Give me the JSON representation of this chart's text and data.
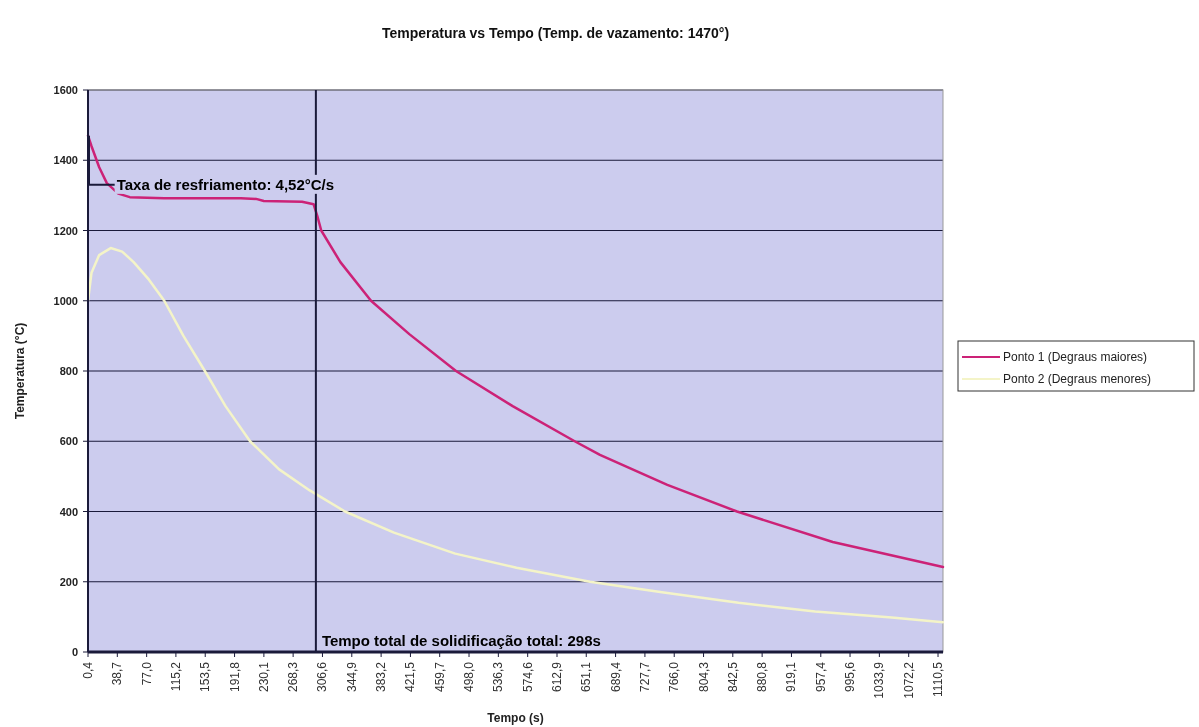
{
  "chart_data": {
    "type": "line",
    "title": "Temperatura vs Tempo (Temp. de vazamento: 1470°)",
    "xlabel": "Tempo (s)",
    "ylabel": "Temperatura (°C)",
    "xlim": [
      0.4,
      1117
    ],
    "ylim": [
      0,
      1600
    ],
    "yticks": [
      0,
      200,
      400,
      600,
      800,
      1000,
      1200,
      1400,
      1600
    ],
    "xticks": [
      {
        "value": 0.4,
        "label": "0,4"
      },
      {
        "value": 38.7,
        "label": "38,7"
      },
      {
        "value": 77.0,
        "label": "77,0"
      },
      {
        "value": 115.2,
        "label": "115,2"
      },
      {
        "value": 153.5,
        "label": "153,5"
      },
      {
        "value": 191.8,
        "label": "191,8"
      },
      {
        "value": 230.1,
        "label": "230,1"
      },
      {
        "value": 268.3,
        "label": "268,3"
      },
      {
        "value": 306.6,
        "label": "306,6"
      },
      {
        "value": 344.9,
        "label": "344,9"
      },
      {
        "value": 383.2,
        "label": "383,2"
      },
      {
        "value": 421.5,
        "label": "421,5"
      },
      {
        "value": 459.7,
        "label": "459,7"
      },
      {
        "value": 498.0,
        "label": "498,0"
      },
      {
        "value": 536.3,
        "label": "536,3"
      },
      {
        "value": 574.6,
        "label": "574,6"
      },
      {
        "value": 612.9,
        "label": "612,9"
      },
      {
        "value": 651.1,
        "label": "651,1"
      },
      {
        "value": 689.4,
        "label": "689,4"
      },
      {
        "value": 727.7,
        "label": "727,7"
      },
      {
        "value": 766.0,
        "label": "766,0"
      },
      {
        "value": 804.3,
        "label": "804,3"
      },
      {
        "value": 842.5,
        "label": "842,5"
      },
      {
        "value": 880.8,
        "label": "880,8"
      },
      {
        "value": 919.1,
        "label": "919,1"
      },
      {
        "value": 957.4,
        "label": "957,4"
      },
      {
        "value": 995.6,
        "label": "995,6"
      },
      {
        "value": 1033.9,
        "label": "1033,9"
      },
      {
        "value": 1072.2,
        "label": "1072,2"
      },
      {
        "value": 1110.5,
        "label": "1110,5"
      }
    ],
    "grid": "y",
    "legend": "right",
    "marker": "none",
    "line_style": "solid",
    "series": [
      {
        "name": "Ponto 1 (Degraus maiores)",
        "color": "#cc2277",
        "x": [
          0.4,
          5,
          15,
          25,
          40,
          55,
          100,
          200,
          220,
          230,
          280,
          295,
          300,
          305,
          330,
          370,
          420,
          481,
          555,
          636,
          669,
          757,
          848,
          973,
          1117
        ],
        "values": [
          1470,
          1440,
          1380,
          1335,
          1305,
          1295,
          1292,
          1292,
          1290,
          1284,
          1282,
          1275,
          1240,
          1200,
          1110,
          1000,
          905,
          800,
          700,
          600,
          561,
          476,
          400,
          313,
          242
        ]
      },
      {
        "name": "Ponto 2 (Degraus menores)",
        "color": "#f4f4c8",
        "x": [
          0.4,
          5,
          15,
          30,
          45,
          60,
          80,
          100,
          125,
          153,
          180,
          212,
          250,
          290,
          336,
          400,
          480,
          560,
          656,
          750,
          850,
          950,
          1050,
          1117
        ],
        "values": [
          1000,
          1080,
          1130,
          1150,
          1140,
          1110,
          1060,
          1000,
          900,
          800,
          700,
          600,
          520,
          460,
          400,
          340,
          280,
          240,
          200,
          170,
          140,
          115,
          98,
          85
        ]
      }
    ],
    "ref_lines": [
      {
        "axis": "x",
        "value": 298,
        "color": "#1a1a3a"
      }
    ],
    "annotations": [
      {
        "text": "Taxa de resfriamento: 4,52°C/s",
        "x": 30,
        "y": 1330
      },
      {
        "text": "Tempo total de solidificação total: 298s",
        "x": 298,
        "y": 30
      }
    ]
  }
}
